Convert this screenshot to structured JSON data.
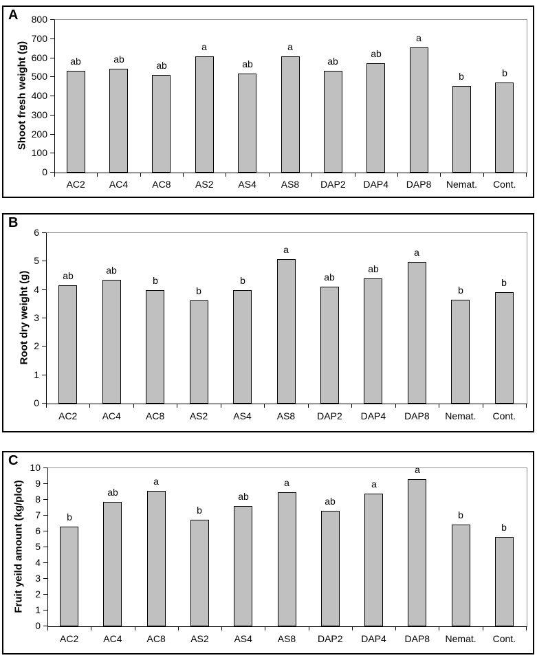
{
  "figure": {
    "background_color": "#ffffff",
    "panel_border_color": "#000000",
    "bar_fill_color": "#c0c0c0",
    "bar_border_color": "#000000",
    "plot_frame_gray": "#8c8c8c",
    "panel_count": 3
  },
  "chart_data": [
    {
      "type": "bar",
      "panel_letter": "A",
      "title": "",
      "xlabel": "",
      "ylabel": "Shoot fresh weight (g)",
      "ylim": [
        0,
        800
      ],
      "ytick_step": 100,
      "ytick_labels": [
        "0",
        "100",
        "200",
        "300",
        "400",
        "500",
        "600",
        "700",
        "800"
      ],
      "grid": "top-border-line-only",
      "legend": "none",
      "categories": [
        "AC2",
        "AC4",
        "AC8",
        "AS2",
        "AS4",
        "AS8",
        "DAP2",
        "DAP4",
        "DAP8",
        "Nemat.",
        "Cont."
      ],
      "values": [
        528,
        541,
        509,
        605,
        517,
        604,
        528,
        571,
        654,
        450,
        470
      ],
      "sig_letters": [
        "ab",
        "ab",
        "ab",
        "a",
        "ab",
        "a",
        "ab",
        "ab",
        "a",
        "b",
        "b"
      ]
    },
    {
      "type": "bar",
      "panel_letter": "B",
      "title": "",
      "xlabel": "",
      "ylabel": "Root dry weight (g)",
      "ylim": [
        0,
        6
      ],
      "ytick_step": 1,
      "ytick_labels": [
        "0",
        "1",
        "2",
        "3",
        "4",
        "5",
        "6"
      ],
      "grid": "top-border-line-only",
      "legend": "none",
      "categories": [
        "AC2",
        "AC4",
        "AC8",
        "AS2",
        "AS4",
        "AS8",
        "DAP2",
        "DAP4",
        "DAP8",
        "Nemat.",
        "Cont."
      ],
      "values": [
        4.13,
        4.33,
        3.96,
        3.6,
        3.96,
        5.05,
        4.1,
        4.38,
        4.95,
        3.62,
        3.9
      ],
      "sig_letters": [
        "ab",
        "ab",
        "b",
        "b",
        "b",
        "a",
        "ab",
        "ab",
        "a",
        "b",
        "b"
      ]
    },
    {
      "type": "bar",
      "panel_letter": "C",
      "title": "",
      "xlabel": "",
      "ylabel": "Fruit yeild amount (kg/plot)",
      "ylim": [
        0,
        10
      ],
      "ytick_step": 1,
      "ytick_labels": [
        "0",
        "1",
        "2",
        "3",
        "4",
        "5",
        "6",
        "7",
        "8",
        "9",
        "10"
      ],
      "grid": "top-border-line-only",
      "legend": "none",
      "categories": [
        "AC2",
        "AC4",
        "AC8",
        "AS2",
        "AS4",
        "AS8",
        "DAP2",
        "DAP4",
        "DAP8",
        "Nemat.",
        "Cont."
      ],
      "values": [
        6.28,
        7.83,
        8.5,
        6.7,
        7.55,
        8.45,
        7.27,
        8.35,
        9.25,
        6.4,
        5.6
      ],
      "sig_letters": [
        "b",
        "ab",
        "a",
        "b",
        "ab",
        "a",
        "ab",
        "a",
        "a",
        "b",
        "b"
      ]
    }
  ]
}
